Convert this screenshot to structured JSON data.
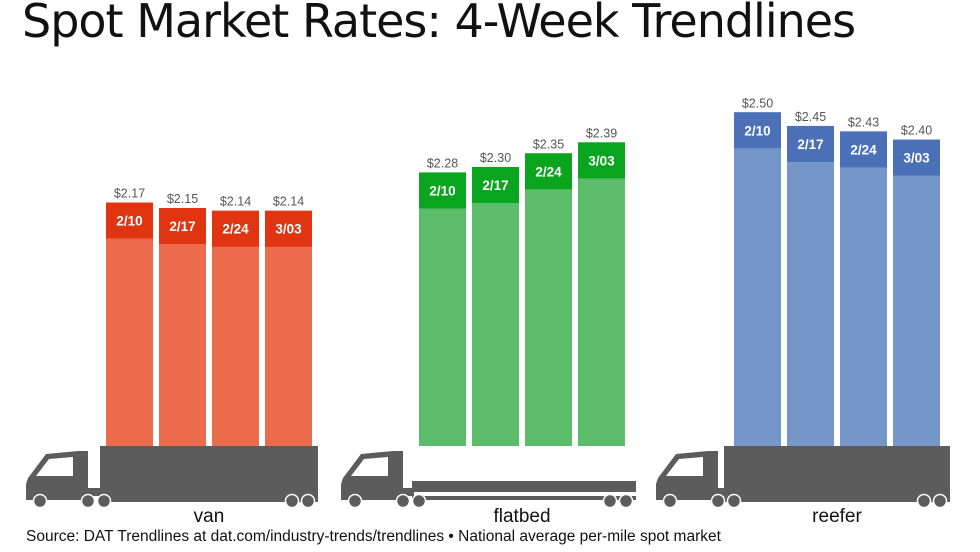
{
  "title": "Spot Market Rates: 4-Week Trendlines",
  "source": "Source: DAT Trendlines at dat.com/industry-trends/trendlines • National average per-mile spot market",
  "chart_data": {
    "type": "bar",
    "groups": [
      {
        "name": "van",
        "colors": {
          "bar": "#ec6b4c",
          "cap": "#e13411"
        },
        "bars": [
          {
            "date": "2/10",
            "value": 2.17,
            "label": "$2.17"
          },
          {
            "date": "2/17",
            "value": 2.15,
            "label": "$2.15"
          },
          {
            "date": "2/24",
            "value": 2.14,
            "label": "$2.14"
          },
          {
            "date": "3/03",
            "value": 2.14,
            "label": "$2.14"
          }
        ]
      },
      {
        "name": "flatbed",
        "colors": {
          "bar": "#5bbd6a",
          "cap": "#0aa51e"
        },
        "bars": [
          {
            "date": "2/10",
            "value": 2.28,
            "label": "$2.28"
          },
          {
            "date": "2/17",
            "value": 2.3,
            "label": "$2.30"
          },
          {
            "date": "2/24",
            "value": 2.35,
            "label": "$2.35"
          },
          {
            "date": "3/03",
            "value": 2.39,
            "label": "$2.39"
          }
        ]
      },
      {
        "name": "reefer",
        "colors": {
          "bar": "#7596c8",
          "cap": "#4b70b8"
        },
        "bars": [
          {
            "date": "2/10",
            "value": 2.5,
            "label": "$2.50"
          },
          {
            "date": "2/17",
            "value": 2.45,
            "label": "$2.45"
          },
          {
            "date": "2/24",
            "value": 2.43,
            "label": "$2.43"
          },
          {
            "date": "3/03",
            "value": 2.4,
            "label": "$2.40"
          }
        ]
      }
    ],
    "truck_color": "#5c5c5c",
    "grid": false,
    "legend": "none"
  }
}
